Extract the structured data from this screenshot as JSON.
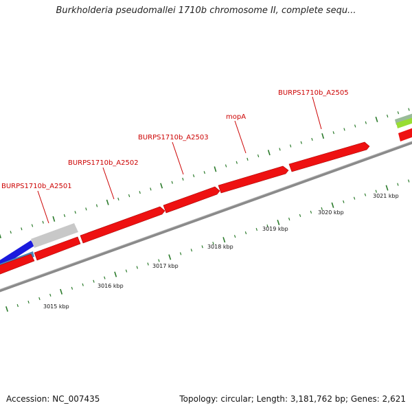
{
  "title": "Burkholderia pseudomallei 1710b chromosome II, complete sequ...",
  "footer": {
    "accession": "Accession: NC_007435",
    "summary": "Topology: circular; Length: 3,181,762 bp; Genes: 2,621"
  },
  "gene_labels": [
    {
      "name": "BURPS1710b_A2501"
    },
    {
      "name": "BURPS1710b_A2502"
    },
    {
      "name": "BURPS1710b_A2503"
    },
    {
      "name": "mopA"
    },
    {
      "name": "BURPS1710b_A2505"
    }
  ],
  "scale_labels": [
    "3015 kbp",
    "3016 kbp",
    "3017 kbp",
    "3018 kbp",
    "3019 kbp",
    "3020 kbp",
    "3021 kbp"
  ],
  "colors": {
    "gene_red": "#ee1111",
    "gene_red_dark": "#aa0000",
    "backbone": "#8a8a8a",
    "tick_green": "#2a7a2a",
    "gray_feature": "#c8c8c8",
    "blue_feature": "#1a1add",
    "steel_feature": "#4a86b8",
    "green_feature": "#99dd33",
    "leader_line": "#cc0000"
  }
}
